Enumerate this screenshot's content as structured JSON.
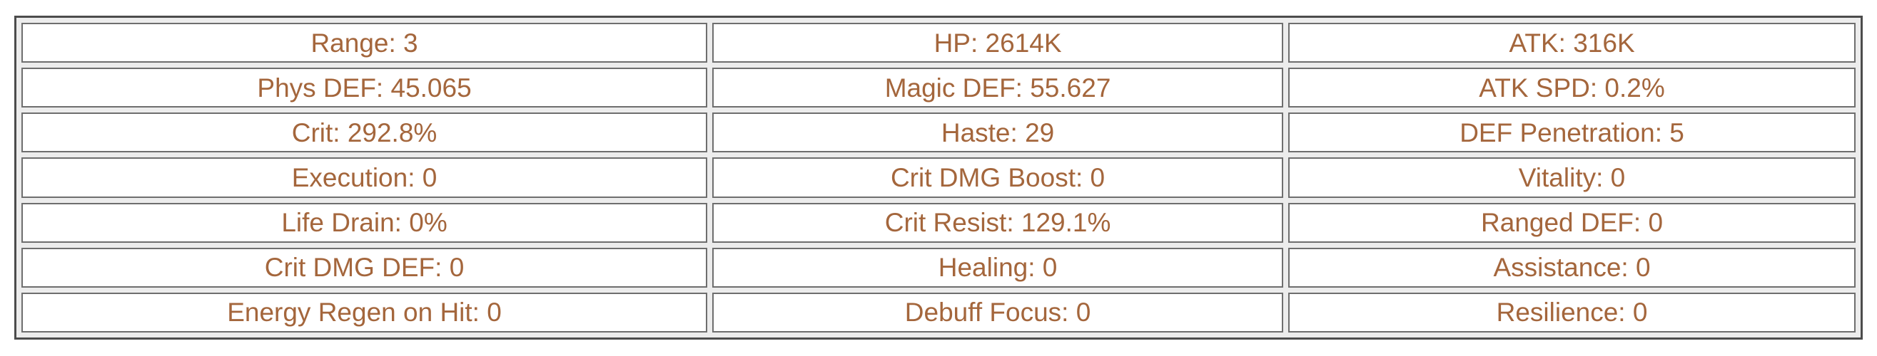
{
  "colors": {
    "text": "#a4663c",
    "cell_border": "#6e6e6e",
    "outer_border": "#4c4c4c",
    "gap_background": "#ececec",
    "page_background": "#ffffff"
  },
  "stats_table": {
    "rows": [
      {
        "cells": [
          "Range: 3",
          "HP: 2614K",
          "ATK: 316K"
        ]
      },
      {
        "cells": [
          "Phys DEF: 45.065",
          "Magic DEF: 55.627",
          "ATK SPD: 0.2%"
        ]
      },
      {
        "cells": [
          "Crit: 292.8%",
          "Haste: 29",
          "DEF Penetration: 5"
        ]
      },
      {
        "cells": [
          "Execution: 0",
          "Crit DMG Boost: 0",
          "Vitality: 0"
        ]
      },
      {
        "cells": [
          "Life Drain: 0%",
          "Crit Resist: 129.1%",
          "Ranged DEF: 0"
        ]
      },
      {
        "cells": [
          "Crit DMG DEF: 0",
          "Healing: 0",
          "Assistance: 0"
        ]
      },
      {
        "cells": [
          "Energy Regen on Hit: 0",
          "Debuff Focus: 0",
          "Resilience: 0"
        ]
      }
    ]
  }
}
